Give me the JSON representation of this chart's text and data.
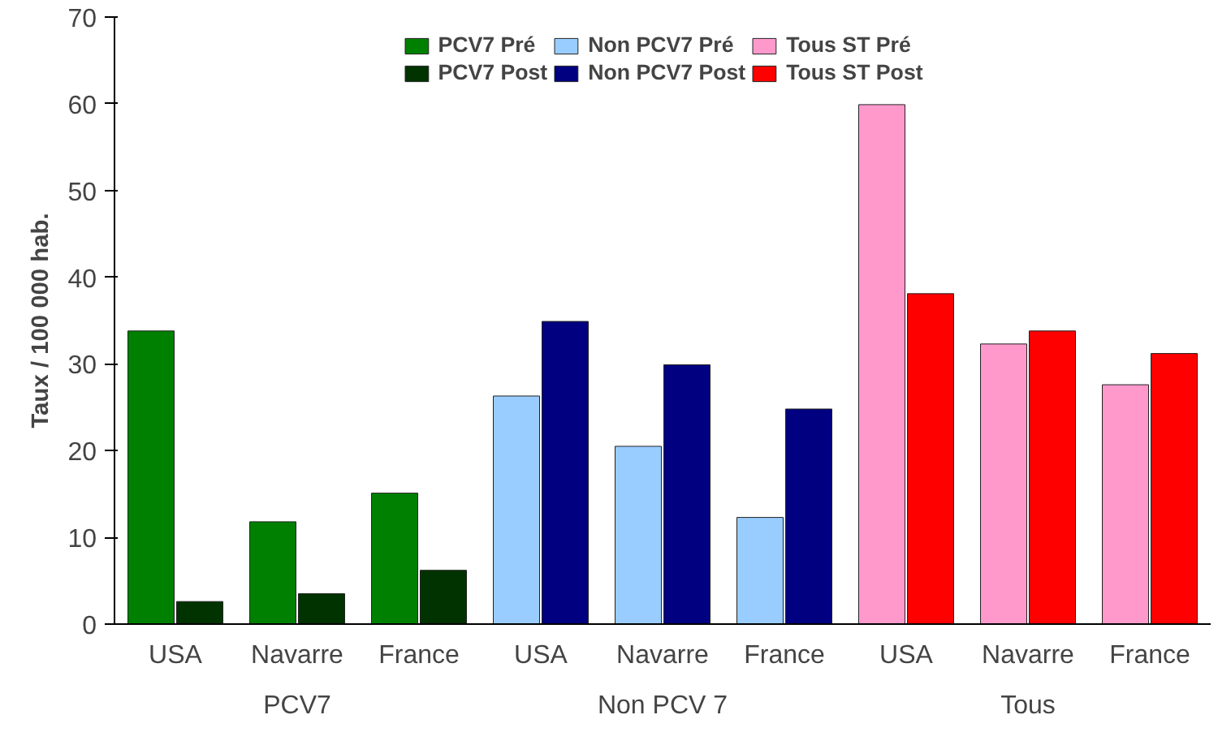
{
  "chart_data": {
    "type": "bar",
    "ylabel": "Taux / 100 000 hab.",
    "categories": [
      "USA",
      "Navarre",
      "France",
      "USA",
      "Navarre",
      "France",
      "USA",
      "Navarre",
      "France"
    ],
    "series": [
      {
        "name": "PCV7 Pré",
        "color": "#008000",
        "values": [
          33.8,
          11.8,
          15.1,
          null,
          null,
          null,
          null,
          null,
          null
        ]
      },
      {
        "name": "PCV7 Post",
        "color": "#003300",
        "values": [
          2.6,
          3.5,
          6.2,
          null,
          null,
          null,
          null,
          null,
          null
        ]
      },
      {
        "name": "Non PCV7 Pré",
        "color": "#99ccff",
        "values": [
          null,
          null,
          null,
          26.3,
          20.5,
          12.3,
          null,
          null,
          null
        ]
      },
      {
        "name": "Non PCV7 Post",
        "color": "#000080",
        "values": [
          null,
          null,
          null,
          34.9,
          29.9,
          24.8,
          null,
          null,
          null
        ]
      },
      {
        "name": "Tous ST Pré",
        "color": "#ff99cc",
        "values": [
          null,
          null,
          null,
          null,
          null,
          null,
          59.9,
          32.3,
          27.6
        ]
      },
      {
        "name": "Tous ST Post",
        "color": "#ff0000",
        "values": [
          null,
          null,
          null,
          null,
          null,
          null,
          38.1,
          33.8,
          31.2
        ]
      }
    ],
    "annotations": [
      "PCV7",
      "Non PCV 7",
      "Tous"
    ],
    "ylim": [
      0,
      70
    ],
    "yticks": [
      0,
      10,
      20,
      30,
      40,
      50,
      60,
      70
    ],
    "grid": false,
    "legend": "top"
  }
}
